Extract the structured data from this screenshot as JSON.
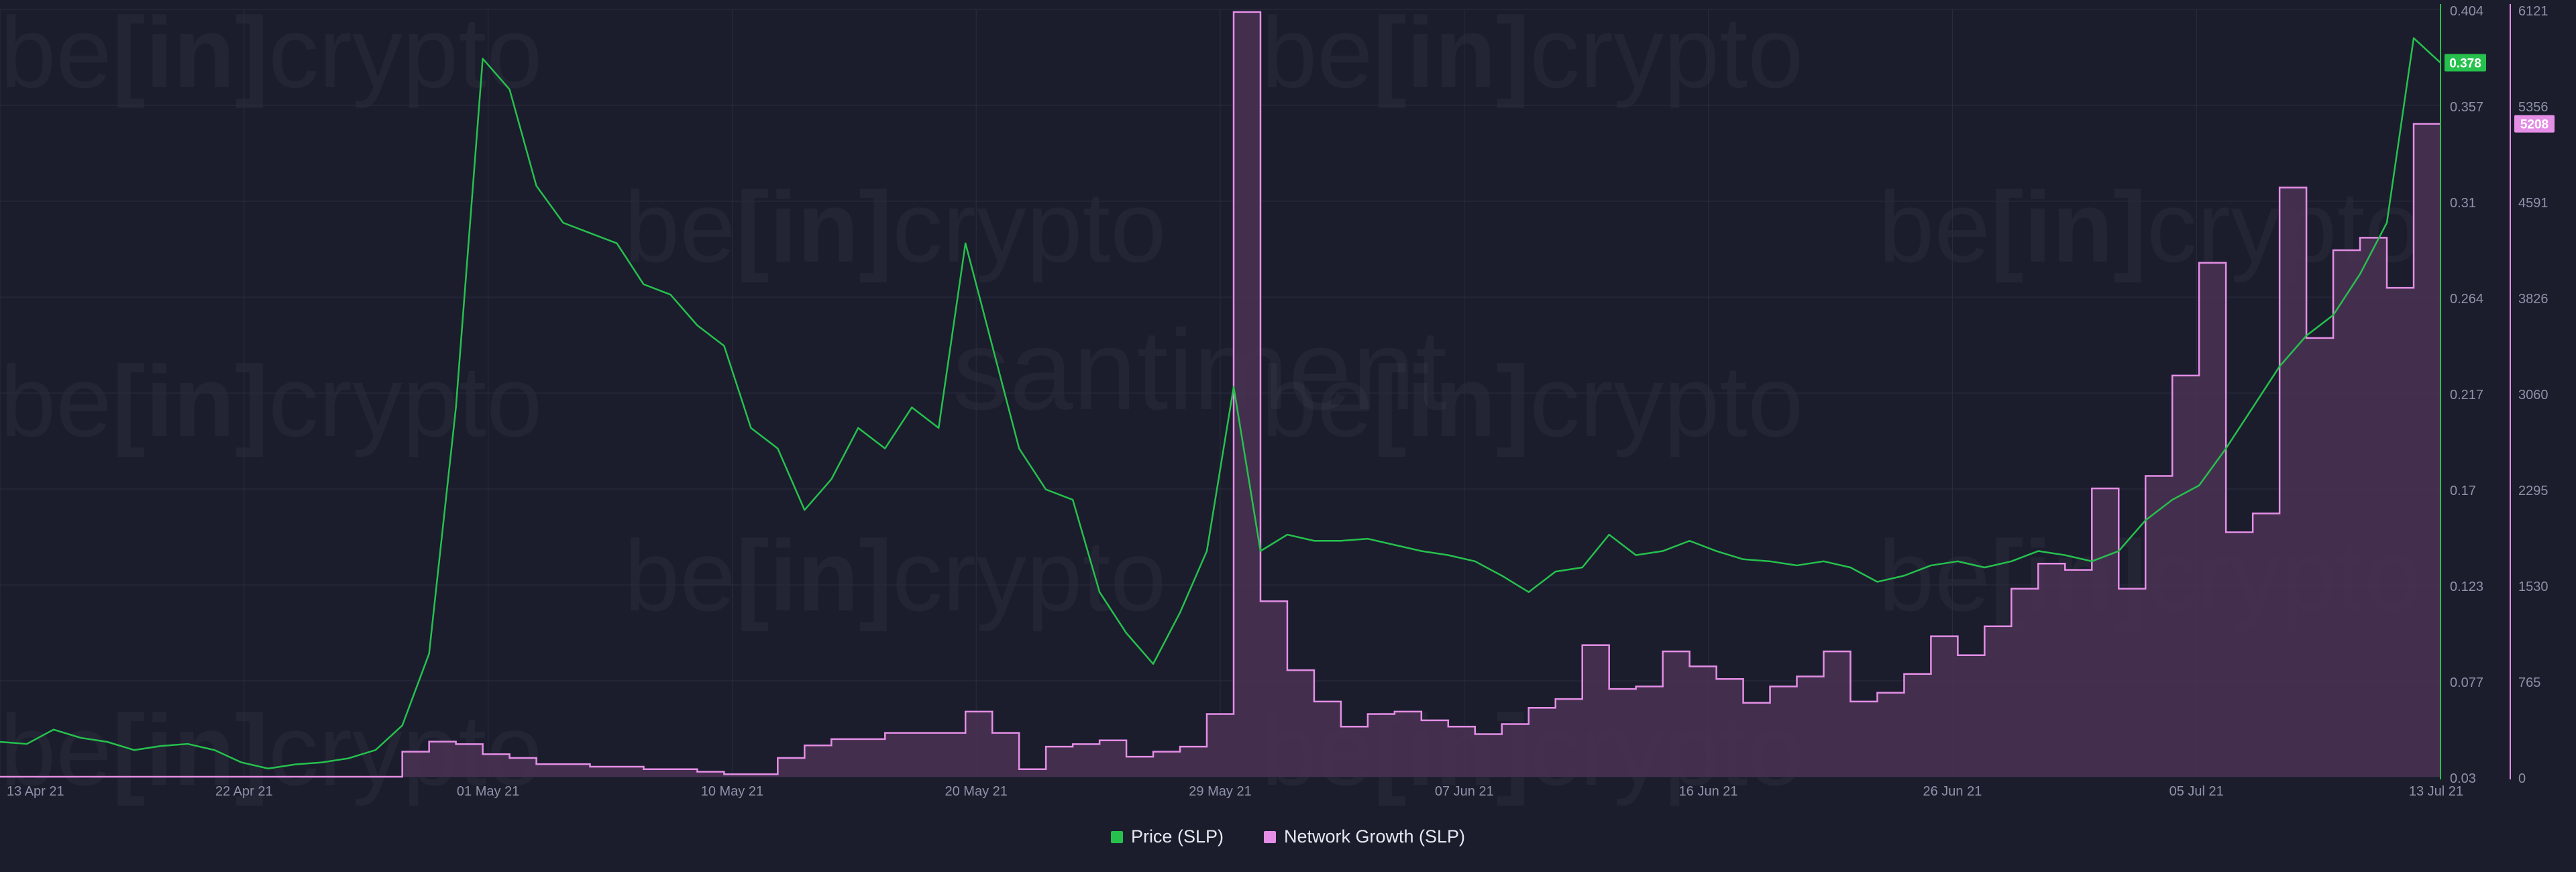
{
  "watermark": {
    "brand_1": "be",
    "brand_2": "[in]",
    "brand_3": "crypto",
    "brand_4": "santiment"
  },
  "colors": {
    "background": "#1b1d2d",
    "price": "#26c14d",
    "growth": "#e58ee6",
    "growth_fill": "#4a3353",
    "grid": "#2a2d3f",
    "tick_text": "#8f93a8"
  },
  "legend": {
    "price_label": "Price (SLP)",
    "growth_label": "Network Growth (SLP)"
  },
  "chart_data": {
    "type": "line",
    "title": "",
    "x_ticks": [
      "13 Apr 21",
      "22 Apr 21",
      "01 May 21",
      "10 May 21",
      "20 May 21",
      "29 May 21",
      "07 Jun 21",
      "16 Jun 21",
      "26 Jun 21",
      "05 Jul 21",
      "13 Jul 21"
    ],
    "x_range": [
      "2021-04-13",
      "2021-07-13"
    ],
    "price_axis": {
      "ticks": [
        "0.404",
        "0.357",
        "0.31",
        "0.264",
        "0.217",
        "0.17",
        "0.123",
        "0.077",
        "0.03"
      ],
      "range": [
        0.03,
        0.404
      ],
      "current_value_label": "0.378"
    },
    "growth_axis": {
      "ticks": [
        "6121",
        "5356",
        "4591",
        "3826",
        "3060",
        "2295",
        "1530",
        "765",
        "0"
      ],
      "range": [
        0,
        6121
      ],
      "current_value_label": "5208"
    },
    "series": [
      {
        "name": "Price (SLP)",
        "axis": "left",
        "points": [
          [
            "2021-04-13",
            0.047
          ],
          [
            "2021-04-14",
            0.046
          ],
          [
            "2021-04-15",
            0.053
          ],
          [
            "2021-04-16",
            0.049
          ],
          [
            "2021-04-17",
            0.047
          ],
          [
            "2021-04-18",
            0.043
          ],
          [
            "2021-04-19",
            0.045
          ],
          [
            "2021-04-20",
            0.046
          ],
          [
            "2021-04-21",
            0.043
          ],
          [
            "2021-04-22",
            0.037
          ],
          [
            "2021-04-23",
            0.034
          ],
          [
            "2021-04-24",
            0.036
          ],
          [
            "2021-04-25",
            0.037
          ],
          [
            "2021-04-26",
            0.039
          ],
          [
            "2021-04-27",
            0.043
          ],
          [
            "2021-04-28",
            0.055
          ],
          [
            "2021-04-29",
            0.09
          ],
          [
            "2021-04-30",
            0.21
          ],
          [
            "2021-05-01",
            0.38
          ],
          [
            "2021-05-02",
            0.365
          ],
          [
            "2021-05-03",
            0.318
          ],
          [
            "2021-05-04",
            0.3
          ],
          [
            "2021-05-05",
            0.295
          ],
          [
            "2021-05-06",
            0.29
          ],
          [
            "2021-05-07",
            0.27
          ],
          [
            "2021-05-08",
            0.265
          ],
          [
            "2021-05-09",
            0.25
          ],
          [
            "2021-05-10",
            0.24
          ],
          [
            "2021-05-11",
            0.2
          ],
          [
            "2021-05-12",
            0.19
          ],
          [
            "2021-05-13",
            0.16
          ],
          [
            "2021-05-14",
            0.175
          ],
          [
            "2021-05-15",
            0.2
          ],
          [
            "2021-05-16",
            0.19
          ],
          [
            "2021-05-17",
            0.21
          ],
          [
            "2021-05-18",
            0.2
          ],
          [
            "2021-05-19",
            0.29
          ],
          [
            "2021-05-20",
            0.24
          ],
          [
            "2021-05-21",
            0.19
          ],
          [
            "2021-05-22",
            0.17
          ],
          [
            "2021-05-23",
            0.165
          ],
          [
            "2021-05-24",
            0.12
          ],
          [
            "2021-05-25",
            0.1
          ],
          [
            "2021-05-26",
            0.085
          ],
          [
            "2021-05-27",
            0.11
          ],
          [
            "2021-05-28",
            0.14
          ],
          [
            "2021-05-29",
            0.22
          ],
          [
            "2021-05-30",
            0.14
          ],
          [
            "2021-05-31",
            0.148
          ],
          [
            "2021-06-01",
            0.145
          ],
          [
            "2021-06-02",
            0.145
          ],
          [
            "2021-06-03",
            0.146
          ],
          [
            "2021-06-04",
            0.143
          ],
          [
            "2021-06-05",
            0.14
          ],
          [
            "2021-06-06",
            0.138
          ],
          [
            "2021-06-07",
            0.135
          ],
          [
            "2021-06-08",
            0.128
          ],
          [
            "2021-06-09",
            0.12
          ],
          [
            "2021-06-10",
            0.13
          ],
          [
            "2021-06-11",
            0.132
          ],
          [
            "2021-06-12",
            0.148
          ],
          [
            "2021-06-13",
            0.138
          ],
          [
            "2021-06-14",
            0.14
          ],
          [
            "2021-06-15",
            0.145
          ],
          [
            "2021-06-16",
            0.14
          ],
          [
            "2021-06-17",
            0.136
          ],
          [
            "2021-06-18",
            0.135
          ],
          [
            "2021-06-19",
            0.133
          ],
          [
            "2021-06-20",
            0.135
          ],
          [
            "2021-06-21",
            0.132
          ],
          [
            "2021-06-22",
            0.125
          ],
          [
            "2021-06-23",
            0.128
          ],
          [
            "2021-06-24",
            0.133
          ],
          [
            "2021-06-25",
            0.135
          ],
          [
            "2021-06-26",
            0.132
          ],
          [
            "2021-06-27",
            0.135
          ],
          [
            "2021-06-28",
            0.14
          ],
          [
            "2021-06-29",
            0.138
          ],
          [
            "2021-06-30",
            0.135
          ],
          [
            "2021-07-01",
            0.14
          ],
          [
            "2021-07-02",
            0.155
          ],
          [
            "2021-07-03",
            0.165
          ],
          [
            "2021-07-04",
            0.172
          ],
          [
            "2021-07-05",
            0.19
          ],
          [
            "2021-07-06",
            0.21
          ],
          [
            "2021-07-07",
            0.23
          ],
          [
            "2021-07-08",
            0.245
          ],
          [
            "2021-07-09",
            0.255
          ],
          [
            "2021-07-10",
            0.275
          ],
          [
            "2021-07-11",
            0.3
          ],
          [
            "2021-07-12",
            0.39
          ],
          [
            "2021-07-13",
            0.378
          ]
        ]
      },
      {
        "name": "Network Growth (SLP)",
        "axis": "right",
        "step": true,
        "points": [
          [
            "2021-04-13",
            0
          ],
          [
            "2021-04-27",
            0
          ],
          [
            "2021-04-28",
            200
          ],
          [
            "2021-04-29",
            280
          ],
          [
            "2021-04-30",
            260
          ],
          [
            "2021-05-01",
            180
          ],
          [
            "2021-05-02",
            150
          ],
          [
            "2021-05-03",
            100
          ],
          [
            "2021-05-05",
            80
          ],
          [
            "2021-05-07",
            60
          ],
          [
            "2021-05-09",
            40
          ],
          [
            "2021-05-10",
            20
          ],
          [
            "2021-05-12",
            150
          ],
          [
            "2021-05-13",
            250
          ],
          [
            "2021-05-14",
            300
          ],
          [
            "2021-05-16",
            350
          ],
          [
            "2021-05-19",
            520
          ],
          [
            "2021-05-20",
            350
          ],
          [
            "2021-05-21",
            60
          ],
          [
            "2021-05-22",
            240
          ],
          [
            "2021-05-23",
            260
          ],
          [
            "2021-05-24",
            290
          ],
          [
            "2021-05-25",
            160
          ],
          [
            "2021-05-26",
            200
          ],
          [
            "2021-05-27",
            240
          ],
          [
            "2021-05-28",
            500
          ],
          [
            "2021-05-29",
            6100
          ],
          [
            "2021-05-30",
            1400
          ],
          [
            "2021-05-31",
            850
          ],
          [
            "2021-06-01",
            600
          ],
          [
            "2021-06-02",
            400
          ],
          [
            "2021-06-03",
            500
          ],
          [
            "2021-06-04",
            520
          ],
          [
            "2021-06-05",
            450
          ],
          [
            "2021-06-06",
            400
          ],
          [
            "2021-06-07",
            340
          ],
          [
            "2021-06-08",
            420
          ],
          [
            "2021-06-09",
            550
          ],
          [
            "2021-06-10",
            620
          ],
          [
            "2021-06-11",
            1050
          ],
          [
            "2021-06-12",
            700
          ],
          [
            "2021-06-13",
            720
          ],
          [
            "2021-06-14",
            1000
          ],
          [
            "2021-06-15",
            880
          ],
          [
            "2021-06-16",
            780
          ],
          [
            "2021-06-17",
            590
          ],
          [
            "2021-06-18",
            720
          ],
          [
            "2021-06-19",
            800
          ],
          [
            "2021-06-20",
            1000
          ],
          [
            "2021-06-21",
            600
          ],
          [
            "2021-06-22",
            670
          ],
          [
            "2021-06-23",
            820
          ],
          [
            "2021-06-24",
            1120
          ],
          [
            "2021-06-25",
            970
          ],
          [
            "2021-06-26",
            1200
          ],
          [
            "2021-06-27",
            1500
          ],
          [
            "2021-06-28",
            1700
          ],
          [
            "2021-06-29",
            1650
          ],
          [
            "2021-06-30",
            2300
          ],
          [
            "2021-07-01",
            1500
          ],
          [
            "2021-07-02",
            2400
          ],
          [
            "2021-07-03",
            3200
          ],
          [
            "2021-07-04",
            4100
          ],
          [
            "2021-07-05",
            1950
          ],
          [
            "2021-07-06",
            2100
          ],
          [
            "2021-07-07",
            4700
          ],
          [
            "2021-07-08",
            3500
          ],
          [
            "2021-07-09",
            4200
          ],
          [
            "2021-07-10",
            4300
          ],
          [
            "2021-07-11",
            3900
          ],
          [
            "2021-07-12",
            5208
          ],
          [
            "2021-07-13",
            5208
          ]
        ]
      }
    ]
  }
}
